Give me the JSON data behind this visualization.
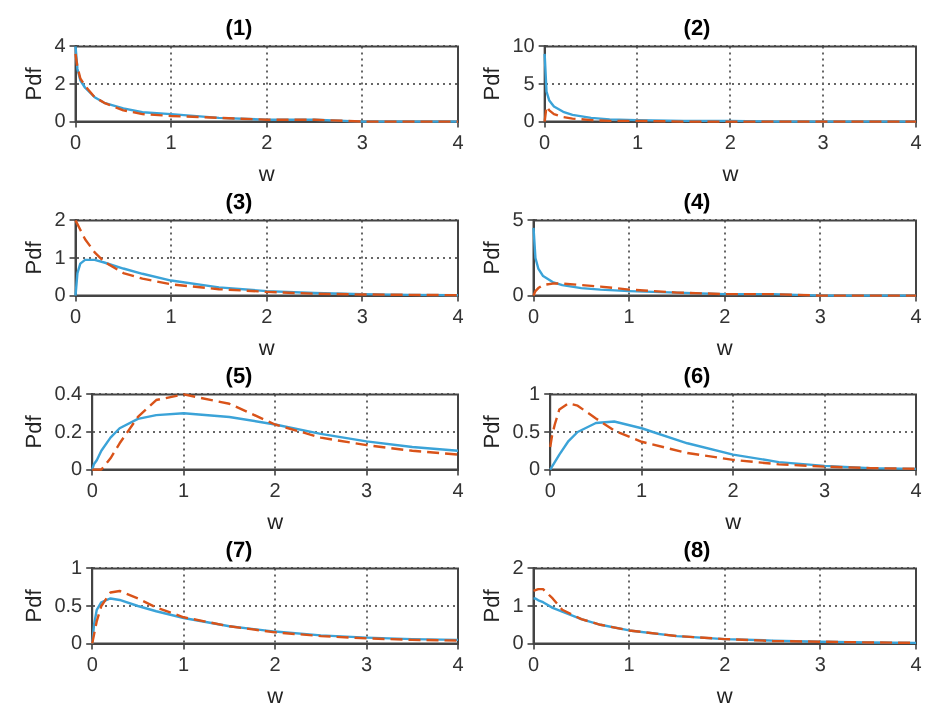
{
  "chart_data": [
    {
      "type": "line",
      "title": "(1)",
      "xlabel": "w",
      "ylabel": "Pdf",
      "x": [
        0,
        0.02,
        0.05,
        0.1,
        0.2,
        0.3,
        0.5,
        0.7,
        1,
        1.5,
        2,
        2.5,
        3,
        3.5,
        4
      ],
      "xlim": [
        0,
        4
      ],
      "xticks": [
        0,
        1,
        2,
        3,
        4
      ],
      "ylim": [
        0,
        4
      ],
      "yticks": [
        0,
        2,
        4
      ],
      "grid": true,
      "series": [
        {
          "color": "#3ba3d8",
          "line_style": "solid",
          "values": [
            4,
            2.8,
            2.2,
            1.8,
            1.3,
            1.0,
            0.7,
            0.5,
            0.4,
            0.2,
            0.1,
            0.1,
            0,
            0,
            0
          ]
        },
        {
          "color": "#d95319",
          "line_style": "dashed",
          "values": [
            3.6,
            2.9,
            2.3,
            1.9,
            1.3,
            1.0,
            0.6,
            0.4,
            0.3,
            0.2,
            0.1,
            0.1,
            0,
            0,
            0
          ]
        }
      ]
    },
    {
      "type": "line",
      "title": "(2)",
      "xlabel": "w",
      "ylabel": "Pdf",
      "x": [
        0,
        0.02,
        0.05,
        0.1,
        0.2,
        0.3,
        0.5,
        0.7,
        1,
        1.5,
        2,
        2.5,
        3,
        3.5,
        4
      ],
      "xlim": [
        0,
        4
      ],
      "xticks": [
        0,
        1,
        2,
        3,
        4
      ],
      "ylim": [
        0,
        10
      ],
      "yticks": [
        0,
        5,
        10
      ],
      "grid": true,
      "series": [
        {
          "color": "#3ba3d8",
          "line_style": "solid",
          "values": [
            9,
            4,
            2.8,
            2,
            1.3,
            0.9,
            0.5,
            0.3,
            0.2,
            0.1,
            0.1,
            0,
            0,
            0,
            0
          ]
        },
        {
          "color": "#d95319",
          "line_style": "dashed",
          "values": [
            0,
            2,
            1.5,
            1,
            0.6,
            0.4,
            0.2,
            0.1,
            0.1,
            0,
            0,
            0,
            0,
            0,
            0
          ]
        }
      ]
    },
    {
      "type": "line",
      "title": "(3)",
      "xlabel": "w",
      "ylabel": "Pdf",
      "x": [
        0,
        0.02,
        0.05,
        0.1,
        0.2,
        0.3,
        0.5,
        0.7,
        1,
        1.5,
        2,
        2.5,
        3,
        3.5,
        4
      ],
      "xlim": [
        0,
        4
      ],
      "xticks": [
        0,
        1,
        2,
        3,
        4
      ],
      "ylim": [
        0,
        2
      ],
      "yticks": [
        0,
        1,
        2
      ],
      "grid": true,
      "series": [
        {
          "color": "#3ba3d8",
          "line_style": "solid",
          "values": [
            0,
            0.6,
            0.85,
            0.95,
            0.95,
            0.88,
            0.72,
            0.58,
            0.4,
            0.22,
            0.12,
            0.07,
            0.04,
            0.02,
            0.01
          ]
        },
        {
          "color": "#d95319",
          "line_style": "dashed",
          "values": [
            2,
            1.9,
            1.75,
            1.5,
            1.15,
            0.9,
            0.6,
            0.45,
            0.3,
            0.17,
            0.1,
            0.05,
            0.03,
            0.02,
            0.01
          ]
        }
      ]
    },
    {
      "type": "line",
      "title": "(4)",
      "xlabel": "w",
      "ylabel": "Pdf",
      "x": [
        0,
        0.02,
        0.05,
        0.1,
        0.2,
        0.3,
        0.5,
        0.7,
        1,
        1.5,
        2,
        2.5,
        3,
        3.5,
        4
      ],
      "xlim": [
        0,
        4
      ],
      "xticks": [
        0,
        1,
        2,
        3,
        4
      ],
      "ylim": [
        0,
        5
      ],
      "yticks": [
        0,
        5
      ],
      "grid": true,
      "series": [
        {
          "color": "#3ba3d8",
          "line_style": "solid",
          "values": [
            4.5,
            2.5,
            1.8,
            1.3,
            0.9,
            0.7,
            0.5,
            0.4,
            0.3,
            0.2,
            0.1,
            0.1,
            0,
            0,
            0
          ]
        },
        {
          "color": "#d95319",
          "line_style": "dashed",
          "values": [
            0,
            0.3,
            0.5,
            0.7,
            0.8,
            0.8,
            0.7,
            0.6,
            0.4,
            0.2,
            0.1,
            0.1,
            0,
            0,
            0
          ]
        }
      ]
    },
    {
      "type": "line",
      "title": "(5)",
      "xlabel": "w",
      "ylabel": "Pdf",
      "x": [
        0,
        0.02,
        0.05,
        0.1,
        0.2,
        0.3,
        0.5,
        0.7,
        1,
        1.5,
        2,
        2.5,
        3,
        3.5,
        4
      ],
      "xlim": [
        0,
        4
      ],
      "xticks": [
        0,
        1,
        2,
        3,
        4
      ],
      "ylim": [
        0,
        0.4
      ],
      "yticks": [
        0,
        0.2,
        0.4
      ],
      "grid": true,
      "series": [
        {
          "color": "#3ba3d8",
          "line_style": "solid",
          "values": [
            0,
            0.03,
            0.05,
            0.1,
            0.17,
            0.22,
            0.27,
            0.29,
            0.3,
            0.28,
            0.24,
            0.19,
            0.15,
            0.12,
            0.1
          ]
        },
        {
          "color": "#d95319",
          "line_style": "dashed",
          "values": [
            0,
            0,
            0,
            0,
            0.06,
            0.14,
            0.28,
            0.37,
            0.4,
            0.35,
            0.24,
            0.17,
            0.13,
            0.1,
            0.08
          ]
        }
      ]
    },
    {
      "type": "line",
      "title": "(6)",
      "xlabel": "w",
      "ylabel": "Pdf",
      "x": [
        0,
        0.02,
        0.05,
        0.1,
        0.2,
        0.3,
        0.5,
        0.7,
        1,
        1.5,
        2,
        2.5,
        3,
        3.5,
        4
      ],
      "xlim": [
        0,
        4
      ],
      "xticks": [
        0,
        1,
        2,
        3,
        4
      ],
      "ylim": [
        0,
        1
      ],
      "yticks": [
        0,
        0.5,
        1
      ],
      "grid": true,
      "series": [
        {
          "color": "#3ba3d8",
          "line_style": "solid",
          "values": [
            0,
            0.04,
            0.1,
            0.2,
            0.38,
            0.5,
            0.62,
            0.64,
            0.55,
            0.35,
            0.2,
            0.1,
            0.05,
            0.02,
            0.01
          ]
        },
        {
          "color": "#d95319",
          "line_style": "dashed",
          "values": [
            0.3,
            0.45,
            0.6,
            0.8,
            0.88,
            0.85,
            0.68,
            0.52,
            0.37,
            0.22,
            0.13,
            0.07,
            0.04,
            0.02,
            0.01
          ]
        }
      ]
    },
    {
      "type": "line",
      "title": "(7)",
      "xlabel": "w",
      "ylabel": "Pdf",
      "x": [
        0,
        0.02,
        0.05,
        0.1,
        0.2,
        0.3,
        0.5,
        0.7,
        1,
        1.5,
        2,
        2.5,
        3,
        3.5,
        4
      ],
      "xlim": [
        0,
        4
      ],
      "xticks": [
        0,
        1,
        2,
        3,
        4
      ],
      "ylim": [
        0,
        1
      ],
      "yticks": [
        0,
        0.5,
        1
      ],
      "grid": true,
      "series": [
        {
          "color": "#3ba3d8",
          "line_style": "solid",
          "values": [
            0,
            0.25,
            0.45,
            0.55,
            0.6,
            0.58,
            0.5,
            0.43,
            0.34,
            0.23,
            0.16,
            0.11,
            0.08,
            0.06,
            0.05
          ]
        },
        {
          "color": "#d95319",
          "line_style": "dashed",
          "values": [
            0,
            0.12,
            0.3,
            0.5,
            0.68,
            0.7,
            0.6,
            0.48,
            0.35,
            0.23,
            0.15,
            0.1,
            0.07,
            0.05,
            0.04
          ]
        }
      ]
    },
    {
      "type": "line",
      "title": "(8)",
      "xlabel": "w",
      "ylabel": "Pdf",
      "x": [
        0,
        0.02,
        0.05,
        0.1,
        0.2,
        0.3,
        0.5,
        0.7,
        1,
        1.5,
        2,
        2.5,
        3,
        3.5,
        4
      ],
      "xlim": [
        0,
        4
      ],
      "xticks": [
        0,
        1,
        2,
        3,
        4
      ],
      "ylim": [
        0,
        2
      ],
      "yticks": [
        0,
        1,
        2
      ],
      "grid": true,
      "series": [
        {
          "color": "#3ba3d8",
          "line_style": "solid",
          "values": [
            1.2,
            1.2,
            1.15,
            1.1,
            0.95,
            0.85,
            0.65,
            0.5,
            0.35,
            0.2,
            0.12,
            0.08,
            0.05,
            0.03,
            0.02
          ]
        },
        {
          "color": "#d95319",
          "line_style": "dashed",
          "values": [
            1.4,
            1.42,
            1.45,
            1.45,
            1.2,
            0.9,
            0.65,
            0.5,
            0.35,
            0.2,
            0.12,
            0.07,
            0.05,
            0.03,
            0.02
          ]
        }
      ]
    }
  ]
}
